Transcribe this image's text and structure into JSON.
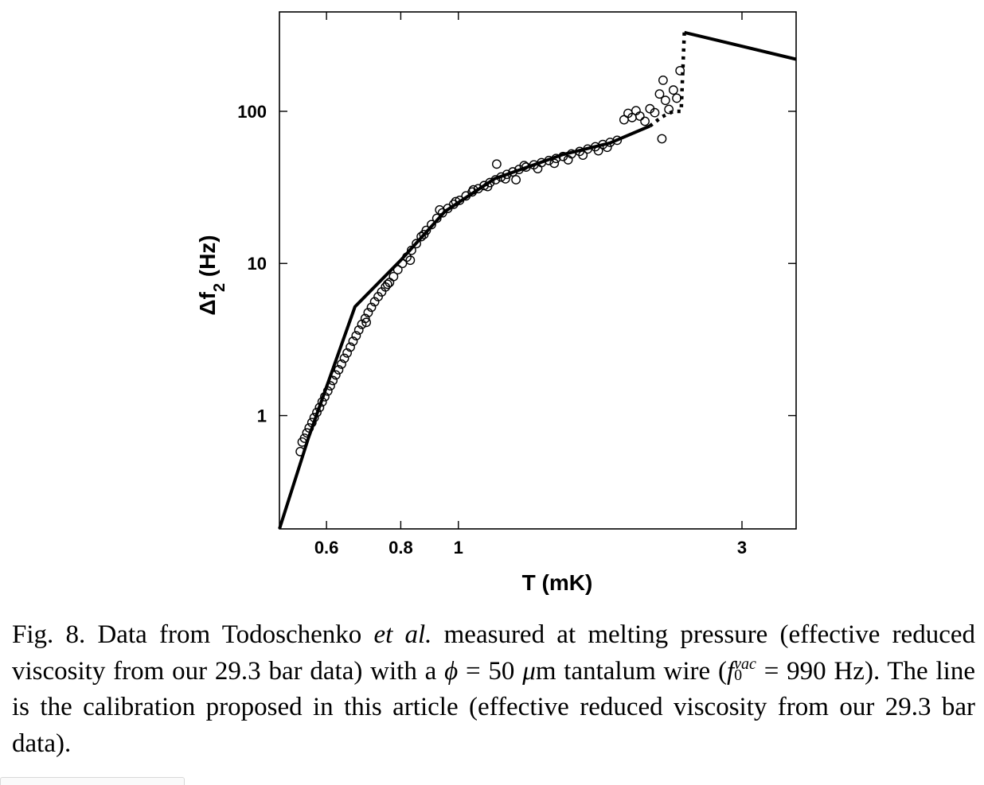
{
  "chart_data": {
    "type": "scatter",
    "title": "",
    "xlabel": "T (mK)",
    "ylabel_parts": {
      "main": "Δf",
      "sub": "2",
      "unit": "(Hz)"
    },
    "x_scale": "log",
    "y_scale": "log",
    "xlim": [
      0.5,
      3.7
    ],
    "ylim": [
      0.18,
      450
    ],
    "x_ticks": [
      {
        "value": 0.6,
        "label": "0.6"
      },
      {
        "value": 0.8,
        "label": "0.8"
      },
      {
        "value": 1,
        "label": "1"
      },
      {
        "value": 3,
        "label": "3"
      }
    ],
    "y_ticks": [
      {
        "value": 1,
        "label": "1"
      },
      {
        "value": 10,
        "label": "10"
      },
      {
        "value": 100,
        "label": "100"
      }
    ],
    "grid": false,
    "legend": "none",
    "series": [
      {
        "kind": "markers",
        "marker": "open-circle",
        "points": [
          [
            0.542,
            0.58
          ],
          [
            0.546,
            0.67
          ],
          [
            0.551,
            0.71
          ],
          [
            0.556,
            0.77
          ],
          [
            0.561,
            0.83
          ],
          [
            0.567,
            0.9
          ],
          [
            0.572,
            0.97
          ],
          [
            0.578,
            1.05
          ],
          [
            0.584,
            1.13
          ],
          [
            0.59,
            1.23
          ],
          [
            0.596,
            1.33
          ],
          [
            0.603,
            1.45
          ],
          [
            0.609,
            1.57
          ],
          [
            0.615,
            1.7
          ],
          [
            0.622,
            1.85
          ],
          [
            0.629,
            2.0
          ],
          [
            0.636,
            2.18
          ],
          [
            0.643,
            2.38
          ],
          [
            0.65,
            2.58
          ],
          [
            0.658,
            2.82
          ],
          [
            0.665,
            3.08
          ],
          [
            0.673,
            3.35
          ],
          [
            0.68,
            3.65
          ],
          [
            0.688,
            3.98
          ],
          [
            0.697,
            4.35
          ],
          [
            0.705,
            4.75
          ],
          [
            0.714,
            5.15
          ],
          [
            0.723,
            5.6
          ],
          [
            0.733,
            6.05
          ],
          [
            0.743,
            6.5
          ],
          [
            0.754,
            7.0
          ],
          [
            0.766,
            7.5
          ],
          [
            0.778,
            8.2
          ],
          [
            0.791,
            9.1
          ],
          [
            0.805,
            10.0
          ],
          [
            0.819,
            11.0
          ],
          [
            0.834,
            12.2
          ],
          [
            0.85,
            13.5
          ],
          [
            0.866,
            15.0
          ],
          [
            0.883,
            16.5
          ],
          [
            0.901,
            18.0
          ],
          [
            0.92,
            19.8
          ],
          [
            0.94,
            21.5
          ],
          [
            0.96,
            23.0
          ],
          [
            0.982,
            24.5
          ],
          [
            1.005,
            26.0
          ],
          [
            1.03,
            27.8
          ],
          [
            1.055,
            29.5
          ],
          [
            1.08,
            31.0
          ],
          [
            1.105,
            32.5
          ],
          [
            1.13,
            34.0
          ],
          [
            1.155,
            35.5
          ],
          [
            1.18,
            37.0
          ],
          [
            1.207,
            38.5
          ],
          [
            1.235,
            40.0
          ],
          [
            1.265,
            41.5
          ],
          [
            1.3,
            43.0
          ],
          [
            1.34,
            44.5
          ],
          [
            1.38,
            46.0
          ],
          [
            1.42,
            47.5
          ],
          [
            1.46,
            49.0
          ],
          [
            1.5,
            50.5
          ],
          [
            1.55,
            52.5
          ],
          [
            1.6,
            54.5
          ],
          [
            1.65,
            56.5
          ],
          [
            1.7,
            58.5
          ],
          [
            1.75,
            60.5
          ],
          [
            1.8,
            62.5
          ],
          [
            1.85,
            64.5
          ],
          [
            0.7,
            4.1
          ],
          [
            0.76,
            7.3
          ],
          [
            0.83,
            10.5
          ],
          [
            0.875,
            15.5
          ],
          [
            0.93,
            22.5
          ],
          [
            0.99,
            25.5
          ],
          [
            1.06,
            30.5
          ],
          [
            1.12,
            32.0
          ],
          [
            1.16,
            45.0
          ],
          [
            1.2,
            36.0
          ],
          [
            1.25,
            35.5
          ],
          [
            1.29,
            44.0
          ],
          [
            1.36,
            42.0
          ],
          [
            1.45,
            45.5
          ],
          [
            1.53,
            48.0
          ],
          [
            1.62,
            51.5
          ],
          [
            1.72,
            55.0
          ],
          [
            1.78,
            58.0
          ],
          [
            1.9,
            88.0
          ],
          [
            1.93,
            97.0
          ],
          [
            1.96,
            91.0
          ],
          [
            1.99,
            101.0
          ],
          [
            2.02,
            93.0
          ],
          [
            2.06,
            86.0
          ],
          [
            2.1,
            104.0
          ],
          [
            2.14,
            98.0
          ],
          [
            2.18,
            130.0
          ],
          [
            2.21,
            160.0
          ],
          [
            2.23,
            118.0
          ],
          [
            2.26,
            103.0
          ],
          [
            2.3,
            138.0
          ],
          [
            2.33,
            122.0
          ],
          [
            2.36,
            185.0
          ],
          [
            2.2,
            66.0
          ]
        ]
      },
      {
        "kind": "solid-line",
        "points": [
          [
            0.5,
            0.18
          ],
          [
            0.56,
            0.72
          ],
          [
            0.67,
            5.2
          ],
          [
            0.8,
            10.5
          ],
          [
            0.95,
            22.0
          ],
          [
            1.15,
            36.0
          ],
          [
            1.5,
            52.0
          ],
          [
            1.8,
            62.0
          ],
          [
            2.1,
            80.0
          ]
        ]
      },
      {
        "kind": "dotted-line",
        "points": [
          [
            2.1,
            80.0
          ],
          [
            2.2,
            92.0
          ],
          [
            2.3,
            100.0
          ],
          [
            2.37,
            100.0
          ],
          [
            2.4,
            330.0
          ]
        ]
      },
      {
        "kind": "solid-line",
        "points": [
          [
            2.4,
            330.0
          ],
          [
            3.7,
            220.0
          ]
        ]
      }
    ]
  },
  "caption": {
    "fig": "Fig. 8.",
    "part1": "Data from Todoschenko",
    "etal": "et al.",
    "part2": "measured at melting pressure (effective reduced viscosity from our 29.3 bar data) with a",
    "phi": "ϕ",
    "eq1": "= 50",
    "mu": "μ",
    "part3": "m tantalum wire (",
    "f": "f",
    "f_sub": "0",
    "f_sup": "vac",
    "part4": "= 990 Hz). The line is the calibration proposed in this article (effective reduced viscosity from our 29.3 bar data)."
  }
}
